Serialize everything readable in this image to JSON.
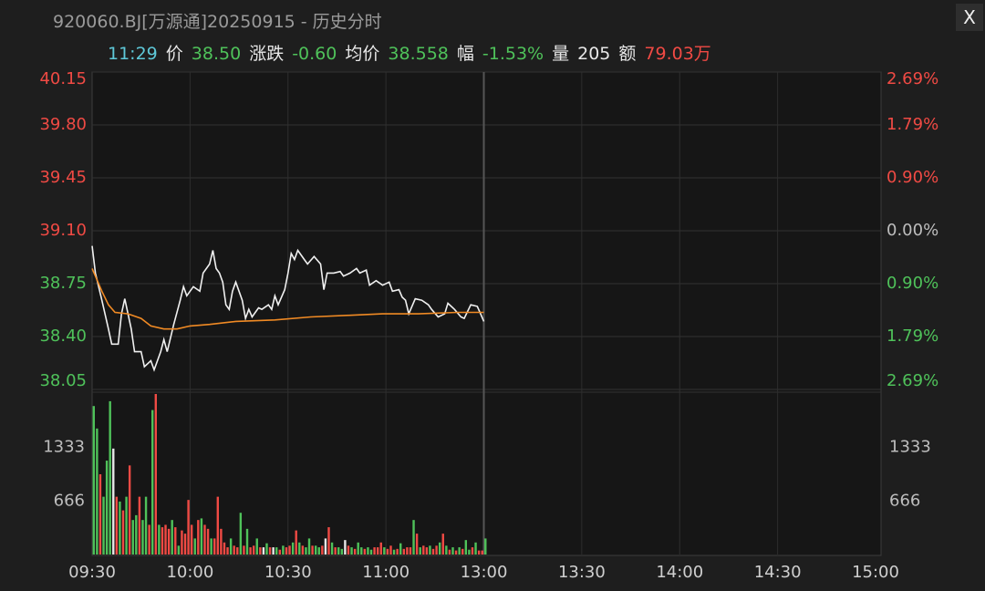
{
  "chart_data": {
    "type": "line",
    "title": "920060.BJ[万源通]20250915 - 历史分时",
    "info": {
      "time": "11:29",
      "time_color": "#5ec8d8",
      "fields": [
        {
          "label": "价",
          "value": "38.50",
          "color": "#4fc25a"
        },
        {
          "label": "涨跌",
          "value": "-0.60",
          "color": "#4fc25a"
        },
        {
          "label": "均价",
          "value": "38.558",
          "color": "#4fc25a"
        },
        {
          "label": "幅",
          "value": "-1.53%",
          "color": "#4fc25a"
        },
        {
          "label": "量",
          "value": "205",
          "color": "#e8e8e8"
        },
        {
          "label": "额",
          "value": "79.03万",
          "color": "#f04a44"
        }
      ]
    },
    "close_button": "X",
    "xlim": [
      0,
      240
    ],
    "xticks": [
      {
        "value": 0,
        "label": "09:30"
      },
      {
        "value": 30,
        "label": "10:00"
      },
      {
        "value": 60,
        "label": "10:30"
      },
      {
        "value": 90,
        "label": "11:00"
      },
      {
        "value": 120,
        "label": "13:00"
      },
      {
        "value": 150,
        "label": "13:30"
      },
      {
        "value": 180,
        "label": "14:00"
      },
      {
        "value": 210,
        "label": "14:30"
      },
      {
        "value": 240,
        "label": "15:00"
      }
    ],
    "ylim": [
      38.05,
      40.15
    ],
    "yticks": [
      {
        "value": 40.15,
        "label": "40.15"
      },
      {
        "value": 39.8,
        "label": "39.80"
      },
      {
        "value": 39.45,
        "label": "39.45"
      },
      {
        "value": 39.1,
        "label": "39.10"
      },
      {
        "value": 38.75,
        "label": "38.75"
      },
      {
        "value": 38.4,
        "label": "38.40"
      },
      {
        "value": 38.05,
        "label": "38.05"
      }
    ],
    "y2lim": [
      -2.69,
      2.69
    ],
    "y2ticks": [
      {
        "value": 2.69,
        "label": "2.69%"
      },
      {
        "value": 1.79,
        "label": "1.79%"
      },
      {
        "value": 0.9,
        "label": "0.90%"
      },
      {
        "value": 0,
        "label": "0.00%"
      },
      {
        "value": -0.9,
        "label": "0.90%"
      },
      {
        "value": -1.79,
        "label": "1.79%"
      },
      {
        "value": -2.69,
        "label": "2.69%"
      }
    ],
    "up_color": "#f04a44",
    "down_color": "#4fc25a",
    "flat_color": "#bdbdbd",
    "grid": true,
    "series": [
      {
        "color": "#f0f0f0",
        "x": [
          0,
          1,
          3,
          5,
          6,
          8,
          9,
          10,
          12,
          13,
          15,
          16,
          18,
          19,
          21,
          22,
          23,
          25,
          27,
          28,
          29,
          31,
          33,
          34,
          36,
          37,
          38,
          39,
          40,
          41,
          42,
          43,
          44,
          46,
          47,
          48,
          49,
          51,
          52,
          54,
          55,
          56,
          57,
          59,
          60,
          61,
          62,
          63,
          65,
          66,
          68,
          70,
          71,
          72,
          74,
          76,
          77,
          79,
          81,
          82,
          84,
          85,
          87,
          89,
          91,
          92,
          94,
          95,
          96,
          97,
          99,
          101,
          103,
          104,
          106,
          108,
          109,
          111,
          113,
          114,
          116,
          118,
          119,
          120
        ],
        "values": [
          39.0,
          38.82,
          38.64,
          38.45,
          38.35,
          38.35,
          38.55,
          38.65,
          38.45,
          38.3,
          38.3,
          38.2,
          38.24,
          38.18,
          38.3,
          38.38,
          38.3,
          38.48,
          38.64,
          38.73,
          38.67,
          38.73,
          38.7,
          38.82,
          38.88,
          38.97,
          38.85,
          38.82,
          38.76,
          38.61,
          38.58,
          38.7,
          38.76,
          38.64,
          38.52,
          38.58,
          38.53,
          38.59,
          38.58,
          38.61,
          38.58,
          38.67,
          38.61,
          38.71,
          38.82,
          38.95,
          38.91,
          38.97,
          38.91,
          38.88,
          38.93,
          38.88,
          38.71,
          38.82,
          38.82,
          38.83,
          38.8,
          38.82,
          38.85,
          38.82,
          38.84,
          38.74,
          38.77,
          38.74,
          38.76,
          38.7,
          38.71,
          38.66,
          38.64,
          38.55,
          38.65,
          38.64,
          38.61,
          38.58,
          38.53,
          38.55,
          38.62,
          38.58,
          38.53,
          38.52,
          38.61,
          38.6,
          38.55,
          38.5
        ]
      },
      {
        "color": "#f08a24",
        "x": [
          0,
          3,
          5,
          7,
          11,
          15,
          18,
          22,
          26,
          30,
          36,
          44,
          56,
          67,
          78,
          89,
          100,
          112,
          120
        ],
        "values": [
          38.85,
          38.7,
          38.61,
          38.56,
          38.55,
          38.52,
          38.47,
          38.45,
          38.45,
          38.47,
          38.48,
          38.5,
          38.51,
          38.53,
          38.54,
          38.55,
          38.55,
          38.56,
          38.56
        ]
      }
    ],
    "volume": {
      "vlim": [
        0,
        2000
      ],
      "vticks": [
        666,
        1333
      ],
      "values": [
        1850,
        1570,
        1000,
        720,
        1170,
        1910,
        1320,
        720,
        660,
        550,
        720,
        1110,
        430,
        490,
        720,
        430,
        720,
        370,
        1800,
        2000,
        370,
        340,
        370,
        320,
        430,
        340,
        110,
        300,
        260,
        680,
        370,
        200,
        430,
        450,
        370,
        320,
        200,
        200,
        720,
        320,
        150,
        90,
        200,
        110,
        90,
        520,
        110,
        320,
        90,
        110,
        200,
        90,
        90,
        140,
        90,
        90,
        90,
        60,
        110,
        90,
        110,
        150,
        300,
        150,
        110,
        90,
        200,
        110,
        110,
        90,
        110,
        200,
        340,
        150,
        90,
        90,
        70,
        180,
        110,
        90,
        70,
        150,
        90,
        70,
        90,
        60,
        90,
        90,
        150,
        90,
        70,
        110,
        60,
        70,
        140,
        70,
        90,
        90,
        430,
        260,
        90,
        110,
        90,
        110,
        70,
        110,
        150,
        260,
        110,
        60,
        90,
        50,
        90,
        70,
        180,
        60,
        90,
        150,
        50,
        50,
        200
      ],
      "colors": [
        "#4fc25a",
        "#4fc25a",
        "#f04a44",
        "#4fc25a",
        "#4fc25a",
        "#4fc25a",
        "#e8e8e8",
        "#f04a44",
        "#4fc25a",
        "#f04a44",
        "#4fc25a",
        "#f04a44",
        "#4fc25a",
        "#4fc25a",
        "#f04a44",
        "#4fc25a",
        "#4fc25a",
        "#f04a44",
        "#4fc25a",
        "#f04a44",
        "#4fc25a",
        "#f04a44",
        "#f04a44",
        "#f04a44",
        "#4fc25a",
        "#f04a44",
        "#4fc25a",
        "#f04a44",
        "#f04a44",
        "#f04a44",
        "#f04a44",
        "#4fc25a",
        "#f04a44",
        "#4fc25a",
        "#f04a44",
        "#f04a44",
        "#4fc25a",
        "#f04a44",
        "#f04a44",
        "#f04a44",
        "#f04a44",
        "#f04a44",
        "#4fc25a",
        "#f04a44",
        "#f04a44",
        "#4fc25a",
        "#f04a44",
        "#4fc25a",
        "#f04a44",
        "#f04a44",
        "#4fc25a",
        "#f04a44",
        "#e8e8e8",
        "#4fc25a",
        "#f04a44",
        "#e8e8e8",
        "#4fc25a",
        "#f04a44",
        "#4fc25a",
        "#f04a44",
        "#f04a44",
        "#4fc25a",
        "#f04a44",
        "#4fc25a",
        "#f04a44",
        "#4fc25a",
        "#4fc25a",
        "#f04a44",
        "#4fc25a",
        "#4fc25a",
        "#f04a44",
        "#e8e8e8",
        "#f04a44",
        "#4fc25a",
        "#f04a44",
        "#4fc25a",
        "#4fc25a",
        "#e8e8e8",
        "#f04a44",
        "#4fc25a",
        "#f04a44",
        "#4fc25a",
        "#4fc25a",
        "#f04a44",
        "#4fc25a",
        "#4fc25a",
        "#f04a44",
        "#f04a44",
        "#f04a44",
        "#4fc25a",
        "#f04a44",
        "#f04a44",
        "#4fc25a",
        "#f04a44",
        "#4fc25a",
        "#f04a44",
        "#f04a44",
        "#f04a44",
        "#4fc25a",
        "#f04a44",
        "#4fc25a",
        "#f04a44",
        "#f04a44",
        "#4fc25a",
        "#f04a44",
        "#f04a44",
        "#4fc25a",
        "#f04a44",
        "#4fc25a",
        "#f04a44",
        "#4fc25a",
        "#f04a44",
        "#4fc25a",
        "#f04a44",
        "#4fc25a",
        "#4fc25a",
        "#f04a44",
        "#4fc25a",
        "#f04a44",
        "#f04a44",
        "#4fc25a"
      ]
    }
  }
}
